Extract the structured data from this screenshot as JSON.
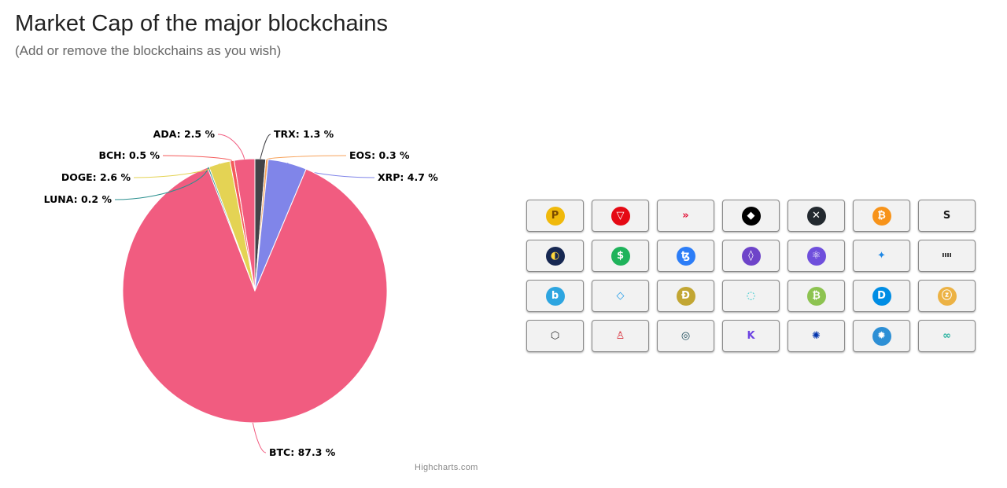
{
  "header": {
    "title": "Market Cap of the major blockchains",
    "subtitle": "(Add or remove the blockchains as you wish)"
  },
  "chart_data": {
    "type": "pie",
    "title": "",
    "slices": [
      {
        "name": "TRX",
        "value": 1.3,
        "label": "TRX: 1.3 %",
        "color": "#434348"
      },
      {
        "name": "EOS",
        "value": 0.3,
        "label": "EOS: 0.3 %",
        "color": "#f7a35c"
      },
      {
        "name": "XRP",
        "value": 4.7,
        "label": "XRP: 4.7 %",
        "color": "#8085e9"
      },
      {
        "name": "BTC",
        "value": 87.3,
        "label": "BTC: 87.3 %",
        "color": "#f15c80"
      },
      {
        "name": "LUNA",
        "value": 0.2,
        "label": "LUNA: 0.2 %",
        "color": "#2b908f"
      },
      {
        "name": "DOGE",
        "value": 2.6,
        "label": "DOGE: 2.6 %",
        "color": "#e4d354"
      },
      {
        "name": "BCH",
        "value": 0.5,
        "label": "BCH: 0.5 %",
        "color": "#f45b5b"
      },
      {
        "name": "ADA",
        "value": 2.5,
        "label": "ADA: 2.5 %",
        "color": "#f15c80"
      }
    ]
  },
  "credits": "Highcharts.com",
  "coins": [
    {
      "name": "pancake",
      "glyph": "P",
      "bg": "#f0b90b",
      "fg": "#7a4a00"
    },
    {
      "name": "tron",
      "glyph": "▽",
      "bg": "#e50914",
      "fg": "#ffffff"
    },
    {
      "name": "hive",
      "glyph": "»",
      "bg": "#ffffff",
      "fg": "#e31337"
    },
    {
      "name": "eos",
      "glyph": "◆",
      "bg": "#000000",
      "fg": "#ffffff"
    },
    {
      "name": "xrp",
      "glyph": "✕",
      "bg": "#23292f",
      "fg": "#ffffff"
    },
    {
      "name": "bitcoin",
      "glyph": "₿",
      "bg": "#f7931a",
      "fg": "#ffffff"
    },
    {
      "name": "steem",
      "glyph": "S",
      "bg": "#ffffff",
      "fg": "#1a1a1a"
    },
    {
      "name": "terra-luna",
      "glyph": "◐",
      "bg": "#172852",
      "fg": "#ffd83d"
    },
    {
      "name": "stable-coin",
      "glyph": "$",
      "bg": "#1fb35b",
      "fg": "#ffffff"
    },
    {
      "name": "tezos",
      "glyph": "ꜩ",
      "bg": "#2c7df7",
      "fg": "#ffffff"
    },
    {
      "name": "polkadot-shield",
      "glyph": "◊",
      "bg": "#6e44c9",
      "fg": "#ffffff"
    },
    {
      "name": "atom",
      "glyph": "⚛",
      "bg": "#6f4fdc",
      "fg": "#ffffff"
    },
    {
      "name": "harmony",
      "glyph": "✦",
      "bg": "#ffffff",
      "fg": "#1e88e5"
    },
    {
      "name": "iota",
      "glyph": "ıııı",
      "bg": "#ffffff",
      "fg": "#1a1a1a"
    },
    {
      "name": "bancor",
      "glyph": "b",
      "bg": "#2da5e0",
      "fg": "#ffffff"
    },
    {
      "name": "diamond",
      "glyph": "◇",
      "bg": "#ffffff",
      "fg": "#1e9be9"
    },
    {
      "name": "dogecoin",
      "glyph": "Ð",
      "bg": "#c2a633",
      "fg": "#ffffff"
    },
    {
      "name": "icon",
      "glyph": "◌",
      "bg": "#ffffff",
      "fg": "#1fc5c9"
    },
    {
      "name": "bitcoin-cash",
      "glyph": "₿",
      "bg": "#8dc351",
      "fg": "#ffffff"
    },
    {
      "name": "dash",
      "glyph": "D",
      "bg": "#008de4",
      "fg": "#ffffff"
    },
    {
      "name": "zcash",
      "glyph": "ⓩ",
      "bg": "#ecb244",
      "fg": "#ffffff"
    },
    {
      "name": "ultra",
      "glyph": "⬡",
      "bg": "#ffffff",
      "fg": "#2a2a2a"
    },
    {
      "name": "huobi-person",
      "glyph": "♙",
      "bg": "#ffffff",
      "fg": "#d61f2b"
    },
    {
      "name": "ontology",
      "glyph": "◎",
      "bg": "#ffffff",
      "fg": "#1b4b5a"
    },
    {
      "name": "kucoin",
      "glyph": "K",
      "bg": "#ffffff",
      "fg": "#6e45e2"
    },
    {
      "name": "cardano",
      "glyph": "✺",
      "bg": "#ffffff",
      "fg": "#0033ad"
    },
    {
      "name": "cosmos-blue",
      "glyph": "✹",
      "bg": "#2d8fd5",
      "fg": "#ffffff"
    },
    {
      "name": "chainlink-knot",
      "glyph": "∞",
      "bg": "#ffffff",
      "fg": "#2bb3a0"
    }
  ]
}
